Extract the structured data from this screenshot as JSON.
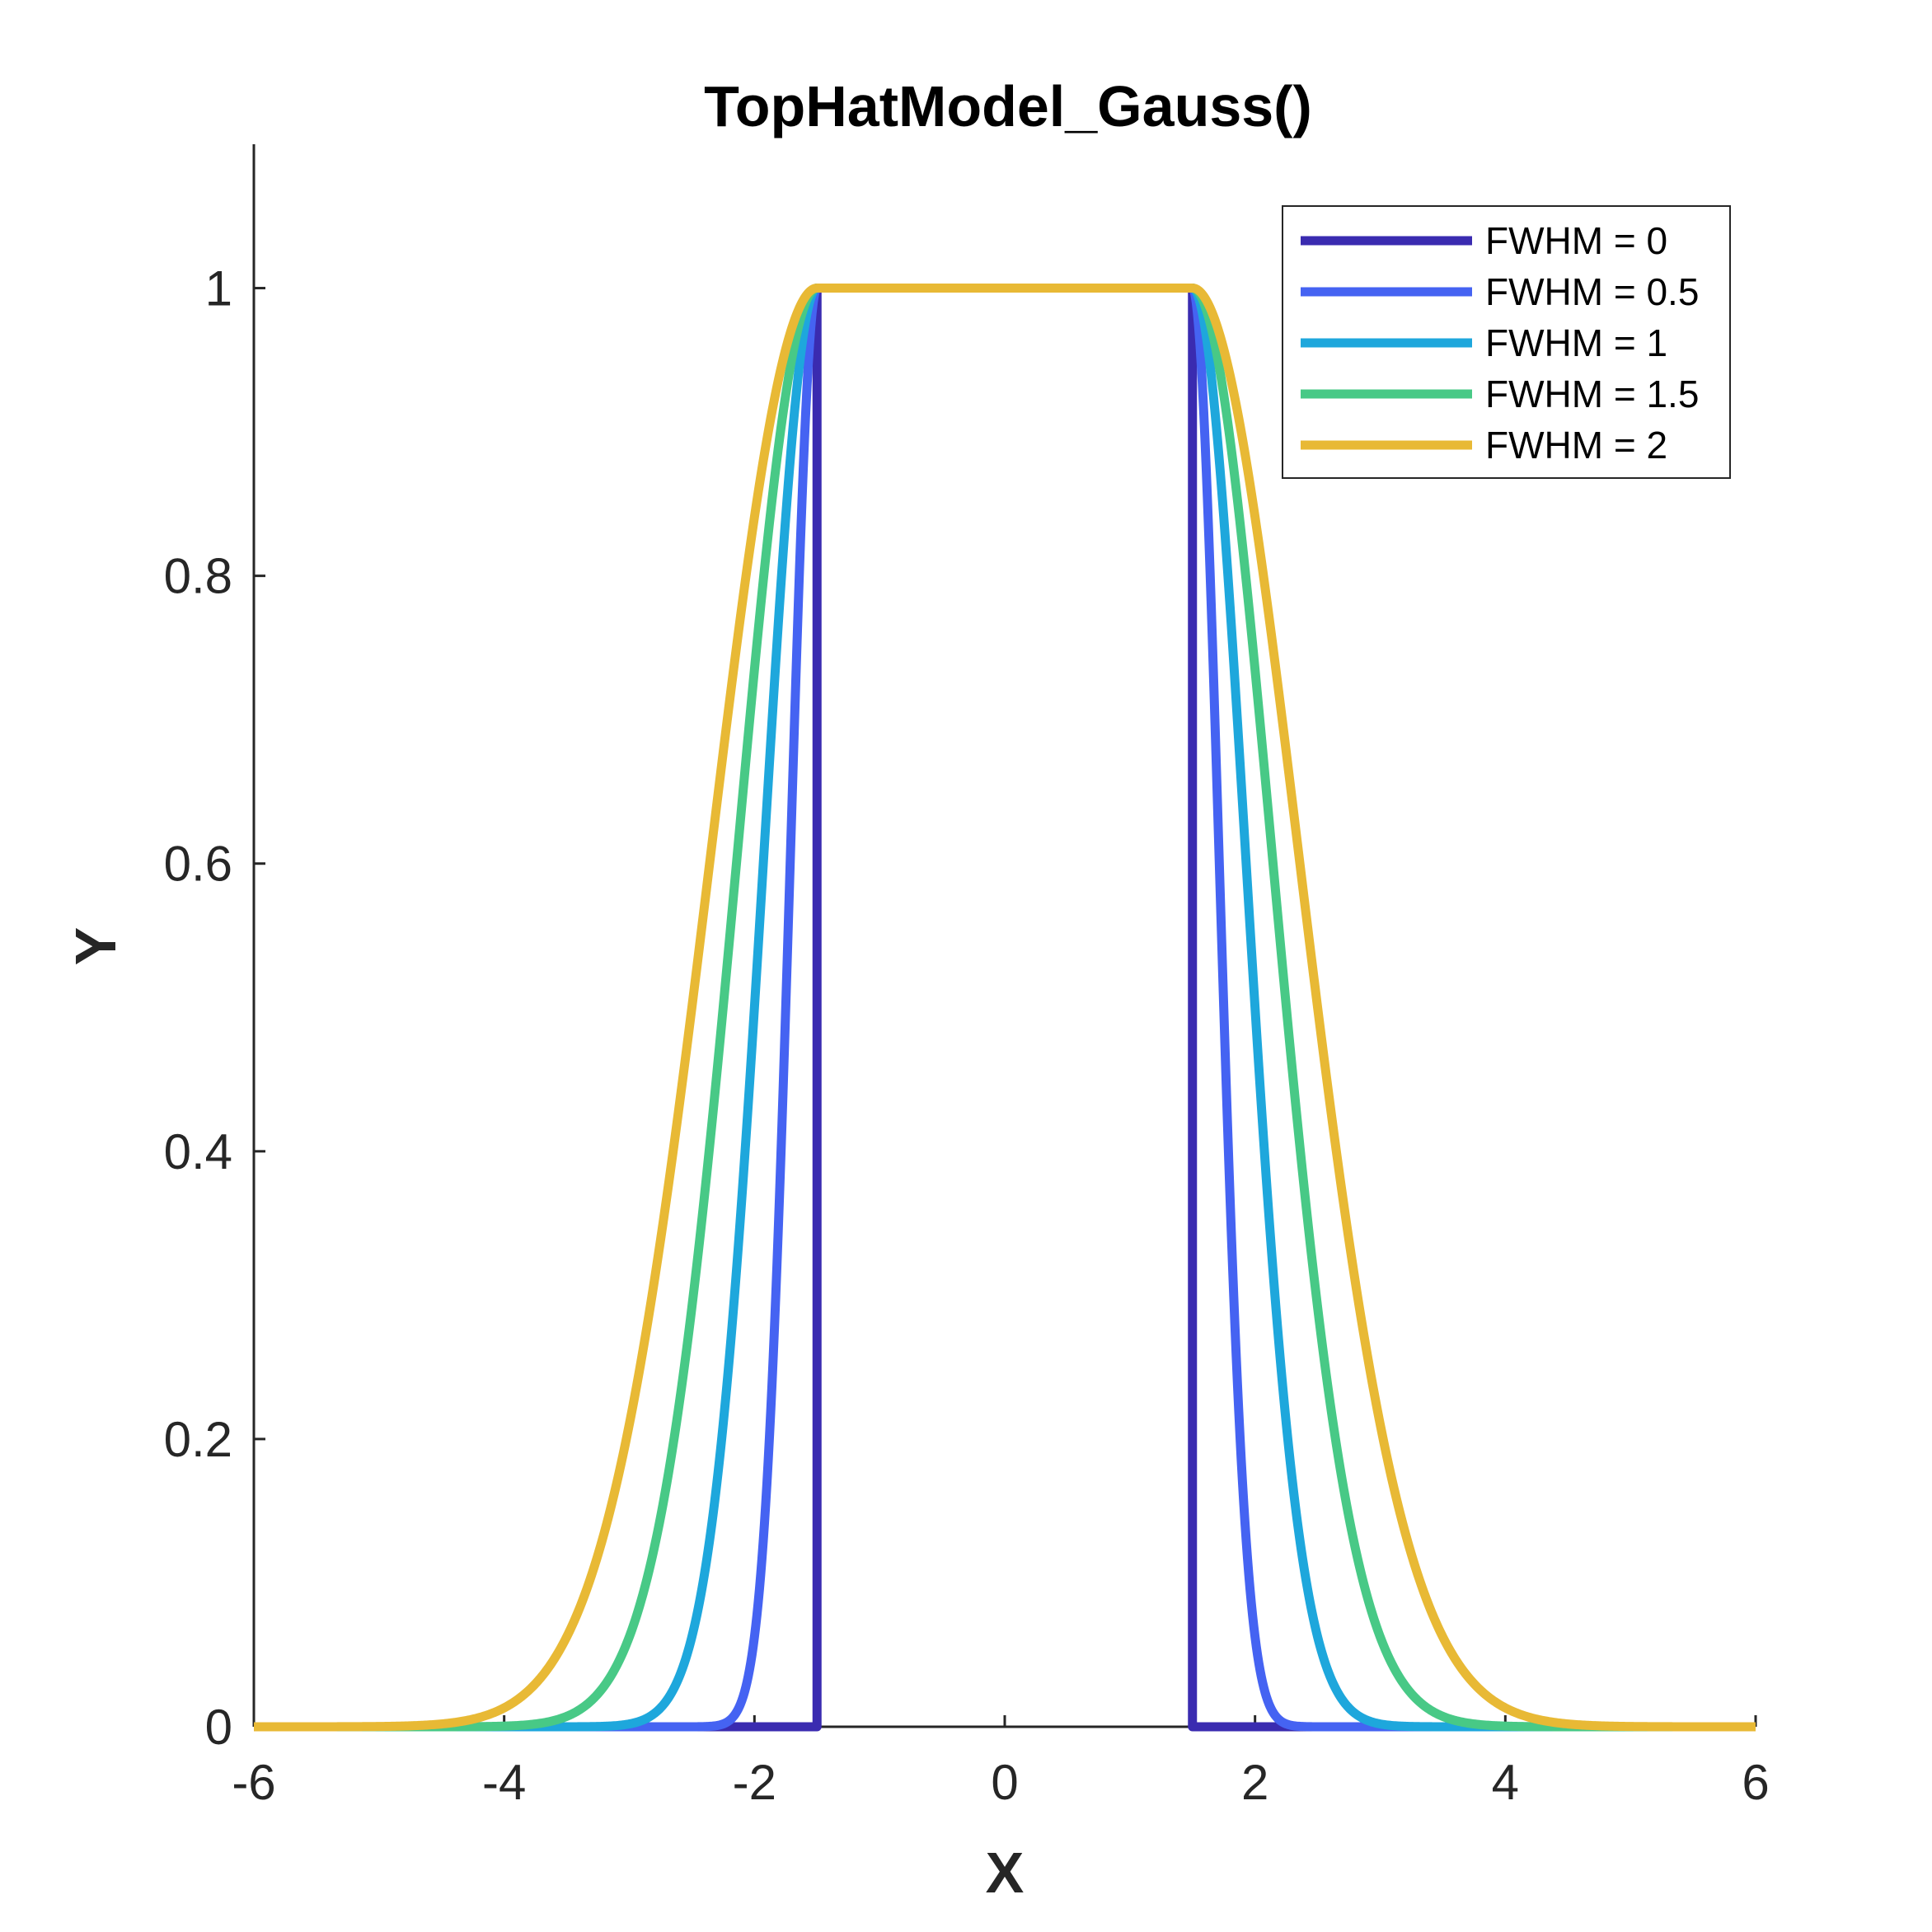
{
  "chart_data": {
    "type": "line",
    "title": "TopHatModel_Gauss()",
    "xlabel": "X",
    "ylabel": "Y",
    "xlim": [
      -6,
      6
    ],
    "ylim": [
      0,
      1.1
    ],
    "xticks": [
      -6,
      -4,
      -2,
      0,
      2,
      4,
      6
    ],
    "xtick_labels": [
      "-6",
      "-4",
      "-2",
      "0",
      "2",
      "4",
      "6"
    ],
    "yticks": [
      0,
      0.2,
      0.4,
      0.6,
      0.8,
      1
    ],
    "ytick_labels": [
      "0",
      "0.2",
      "0.4",
      "0.6",
      "0.8",
      "1"
    ],
    "grid": false,
    "legend_position": "top-right",
    "model": {
      "plateau_halfwidth": 1.5,
      "amplitude": 1
    },
    "series": [
      {
        "name": "FWHM = 0",
        "fwhm": 0,
        "color": "#3a2bb0"
      },
      {
        "name": "FWHM = 0.5",
        "fwhm": 0.5,
        "color": "#4563f2"
      },
      {
        "name": "FWHM = 1",
        "fwhm": 1,
        "color": "#1ea7dc"
      },
      {
        "name": "FWHM = 1.5",
        "fwhm": 1.5,
        "color": "#48c986"
      },
      {
        "name": "FWHM = 2",
        "fwhm": 2,
        "color": "#e8b935"
      }
    ]
  }
}
